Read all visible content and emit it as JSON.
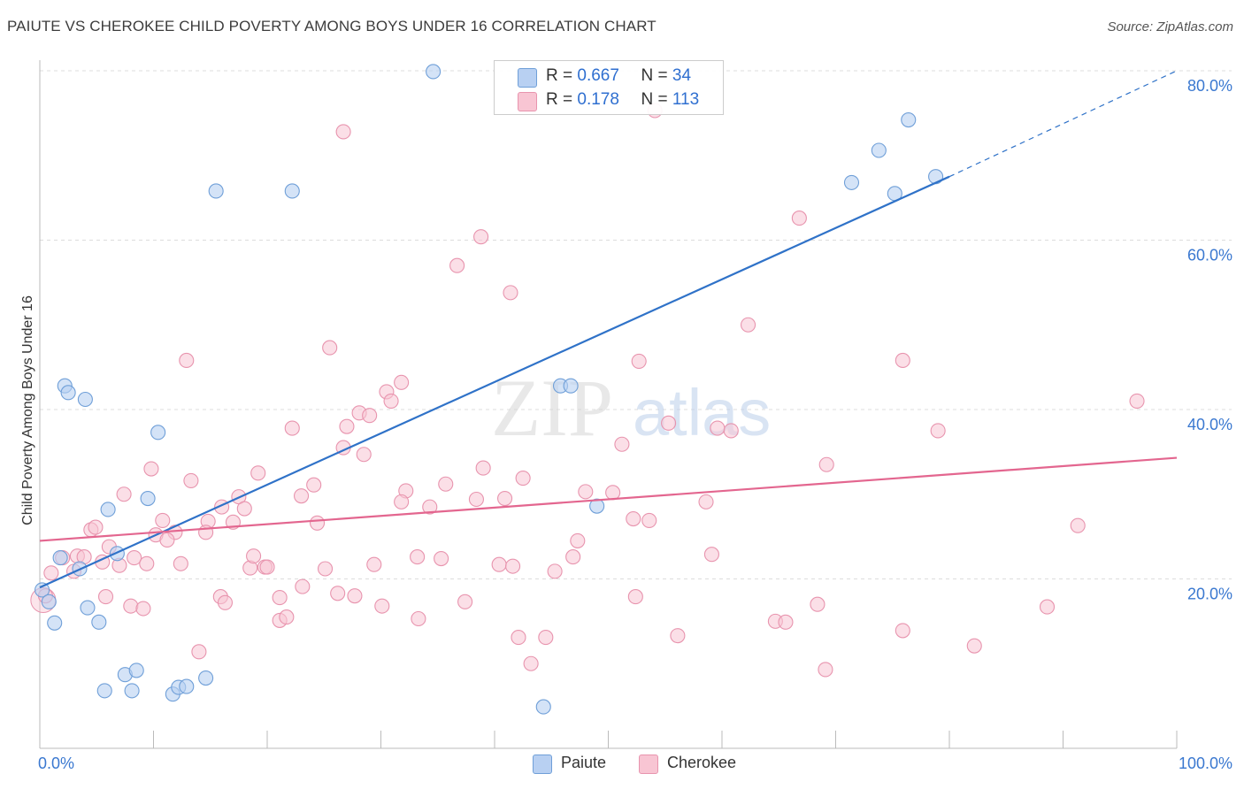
{
  "title": "PAIUTE VS CHEROKEE CHILD POVERTY AMONG BOYS UNDER 16 CORRELATION CHART",
  "source": "Source: ZipAtlas.com",
  "watermark": {
    "zip": "ZIP",
    "atlas": "atlas"
  },
  "legend": {
    "paiute": {
      "r_label": "R =",
      "r_value": "0.667",
      "n_label": "N =",
      "n_value": "34"
    },
    "cherokee": {
      "r_label": "R =",
      "r_value": "0.178",
      "n_label": "N =",
      "n_value": "113"
    }
  },
  "bottom_legend": {
    "paiute": "Paiute",
    "cherokee": "Cherokee"
  },
  "colors": {
    "paiute_fill": "#b8d0f2",
    "paiute_stroke": "#6f9fd8",
    "paiute_line": "#2f72c8",
    "cherokee_fill": "#f8c5d3",
    "cherokee_stroke": "#e894ae",
    "cherokee_line": "#e3668f",
    "axis_text": "#3a78d0",
    "grid": "#dddddd"
  },
  "chart_data": {
    "type": "scatter",
    "title": "PAIUTE VS CHEROKEE CHILD POVERTY AMONG BOYS UNDER 16 CORRELATION CHART",
    "xlabel": "",
    "ylabel": "Child Poverty Among Boys Under 16",
    "xlim": [
      0,
      100
    ],
    "ylim": [
      0,
      82
    ],
    "x_tick_labels": [
      "0.0%",
      "100.0%"
    ],
    "y_ticks": [
      20,
      40,
      60,
      80
    ],
    "y_tick_labels": [
      "20.0%",
      "40.0%",
      "60.0%",
      "80.0%"
    ],
    "grid": true,
    "legend_position": "top-center",
    "series": [
      {
        "name": "Paiute",
        "R": 0.667,
        "N": 34,
        "trend": {
          "x0": 0,
          "y0": 19.0,
          "x1": 80,
          "y1": 67.5,
          "dashed_to_x": 100,
          "dashed_to_y": 80
        },
        "points": [
          [
            34.6,
            79.9
          ],
          [
            15.5,
            65.8
          ],
          [
            22.2,
            65.8
          ],
          [
            76.4,
            74.2
          ],
          [
            73.8,
            70.6
          ],
          [
            71.4,
            66.8
          ],
          [
            75.2,
            65.5
          ],
          [
            78.8,
            67.5
          ],
          [
            2.2,
            42.8
          ],
          [
            2.5,
            42.0
          ],
          [
            4.0,
            41.2
          ],
          [
            10.4,
            37.3
          ],
          [
            45.8,
            42.8
          ],
          [
            46.7,
            42.8
          ],
          [
            9.5,
            29.5
          ],
          [
            6.0,
            28.2
          ],
          [
            49.0,
            28.6
          ],
          [
            1.8,
            22.5
          ],
          [
            3.5,
            21.2
          ],
          [
            6.8,
            23.0
          ],
          [
            0.2,
            18.7
          ],
          [
            0.8,
            17.3
          ],
          [
            1.3,
            14.8
          ],
          [
            4.2,
            16.6
          ],
          [
            5.2,
            14.9
          ],
          [
            5.7,
            6.8
          ],
          [
            7.5,
            8.7
          ],
          [
            8.1,
            6.8
          ],
          [
            8.5,
            9.2
          ],
          [
            11.7,
            6.4
          ],
          [
            12.2,
            7.2
          ],
          [
            12.9,
            7.3
          ],
          [
            14.6,
            8.3
          ],
          [
            44.3,
            4.9
          ]
        ]
      },
      {
        "name": "Cherokee",
        "R": 0.178,
        "N": 113,
        "trend": {
          "x0": 0,
          "y0": 24.5,
          "x1": 100,
          "y1": 34.3
        },
        "points": [
          [
            26.7,
            72.8
          ],
          [
            54.1,
            75.3
          ],
          [
            38.8,
            60.4
          ],
          [
            36.7,
            57.0
          ],
          [
            41.4,
            53.8
          ],
          [
            66.8,
            62.6
          ],
          [
            62.3,
            50.0
          ],
          [
            25.5,
            47.3
          ],
          [
            12.9,
            45.8
          ],
          [
            52.7,
            45.7
          ],
          [
            75.9,
            45.8
          ],
          [
            96.5,
            41.0
          ],
          [
            30.5,
            42.1
          ],
          [
            30.9,
            41.0
          ],
          [
            31.8,
            43.2
          ],
          [
            28.1,
            39.6
          ],
          [
            29.0,
            39.3
          ],
          [
            55.3,
            38.4
          ],
          [
            59.6,
            37.8
          ],
          [
            60.8,
            37.5
          ],
          [
            79.0,
            37.5
          ],
          [
            22.2,
            37.8
          ],
          [
            26.7,
            35.5
          ],
          [
            28.5,
            34.7
          ],
          [
            51.2,
            35.9
          ],
          [
            9.8,
            33.0
          ],
          [
            19.2,
            32.5
          ],
          [
            39.0,
            33.1
          ],
          [
            42.5,
            31.9
          ],
          [
            69.2,
            33.5
          ],
          [
            13.3,
            31.6
          ],
          [
            7.4,
            30.0
          ],
          [
            17.5,
            29.7
          ],
          [
            24.1,
            31.1
          ],
          [
            32.2,
            30.4
          ],
          [
            35.7,
            31.2
          ],
          [
            38.4,
            29.4
          ],
          [
            50.4,
            30.2
          ],
          [
            58.6,
            29.1
          ],
          [
            16.0,
            28.5
          ],
          [
            18.0,
            28.3
          ],
          [
            31.8,
            29.1
          ],
          [
            34.3,
            28.5
          ],
          [
            40.9,
            29.5
          ],
          [
            10.8,
            26.9
          ],
          [
            14.8,
            26.8
          ],
          [
            17.0,
            26.7
          ],
          [
            24.4,
            26.6
          ],
          [
            52.2,
            27.1
          ],
          [
            53.6,
            26.9
          ],
          [
            4.5,
            25.8
          ],
          [
            4.9,
            26.1
          ],
          [
            10.2,
            25.2
          ],
          [
            11.9,
            25.5
          ],
          [
            14.6,
            25.5
          ],
          [
            11.2,
            24.6
          ],
          [
            47.3,
            24.5
          ],
          [
            91.3,
            26.3
          ],
          [
            6.1,
            23.8
          ],
          [
            2.0,
            22.5
          ],
          [
            3.3,
            22.7
          ],
          [
            3.9,
            22.6
          ],
          [
            5.5,
            22.0
          ],
          [
            8.3,
            22.5
          ],
          [
            9.4,
            21.8
          ],
          [
            12.4,
            21.8
          ],
          [
            18.5,
            21.3
          ],
          [
            18.8,
            22.7
          ],
          [
            19.8,
            21.4
          ],
          [
            20.0,
            21.4
          ],
          [
            25.1,
            21.2
          ],
          [
            29.4,
            21.7
          ],
          [
            33.2,
            22.6
          ],
          [
            35.3,
            22.4
          ],
          [
            40.4,
            21.7
          ],
          [
            46.9,
            22.6
          ],
          [
            59.1,
            22.9
          ],
          [
            1.0,
            20.7
          ],
          [
            3.0,
            20.9
          ],
          [
            7.0,
            21.6
          ],
          [
            45.3,
            20.9
          ],
          [
            0.5,
            18.0
          ],
          [
            5.8,
            17.9
          ],
          [
            15.9,
            17.9
          ],
          [
            16.3,
            17.2
          ],
          [
            21.1,
            17.8
          ],
          [
            23.1,
            19.1
          ],
          [
            26.2,
            18.3
          ],
          [
            27.7,
            18.0
          ],
          [
            41.6,
            21.5
          ],
          [
            8.0,
            16.8
          ],
          [
            9.1,
            16.5
          ],
          [
            30.1,
            16.8
          ],
          [
            37.4,
            17.3
          ],
          [
            52.4,
            17.9
          ],
          [
            68.4,
            17.0
          ],
          [
            88.6,
            16.7
          ],
          [
            21.1,
            15.1
          ],
          [
            21.7,
            15.5
          ],
          [
            33.3,
            15.3
          ],
          [
            64.7,
            15.0
          ],
          [
            65.6,
            14.9
          ],
          [
            56.1,
            13.3
          ],
          [
            42.1,
            13.1
          ],
          [
            44.5,
            13.1
          ],
          [
            75.9,
            13.9
          ],
          [
            82.2,
            12.1
          ],
          [
            14.0,
            11.4
          ],
          [
            43.2,
            10.0
          ],
          [
            69.1,
            9.3
          ],
          [
            27.0,
            38.0
          ],
          [
            23.0,
            29.8
          ],
          [
            48.0,
            30.3
          ]
        ]
      }
    ]
  }
}
